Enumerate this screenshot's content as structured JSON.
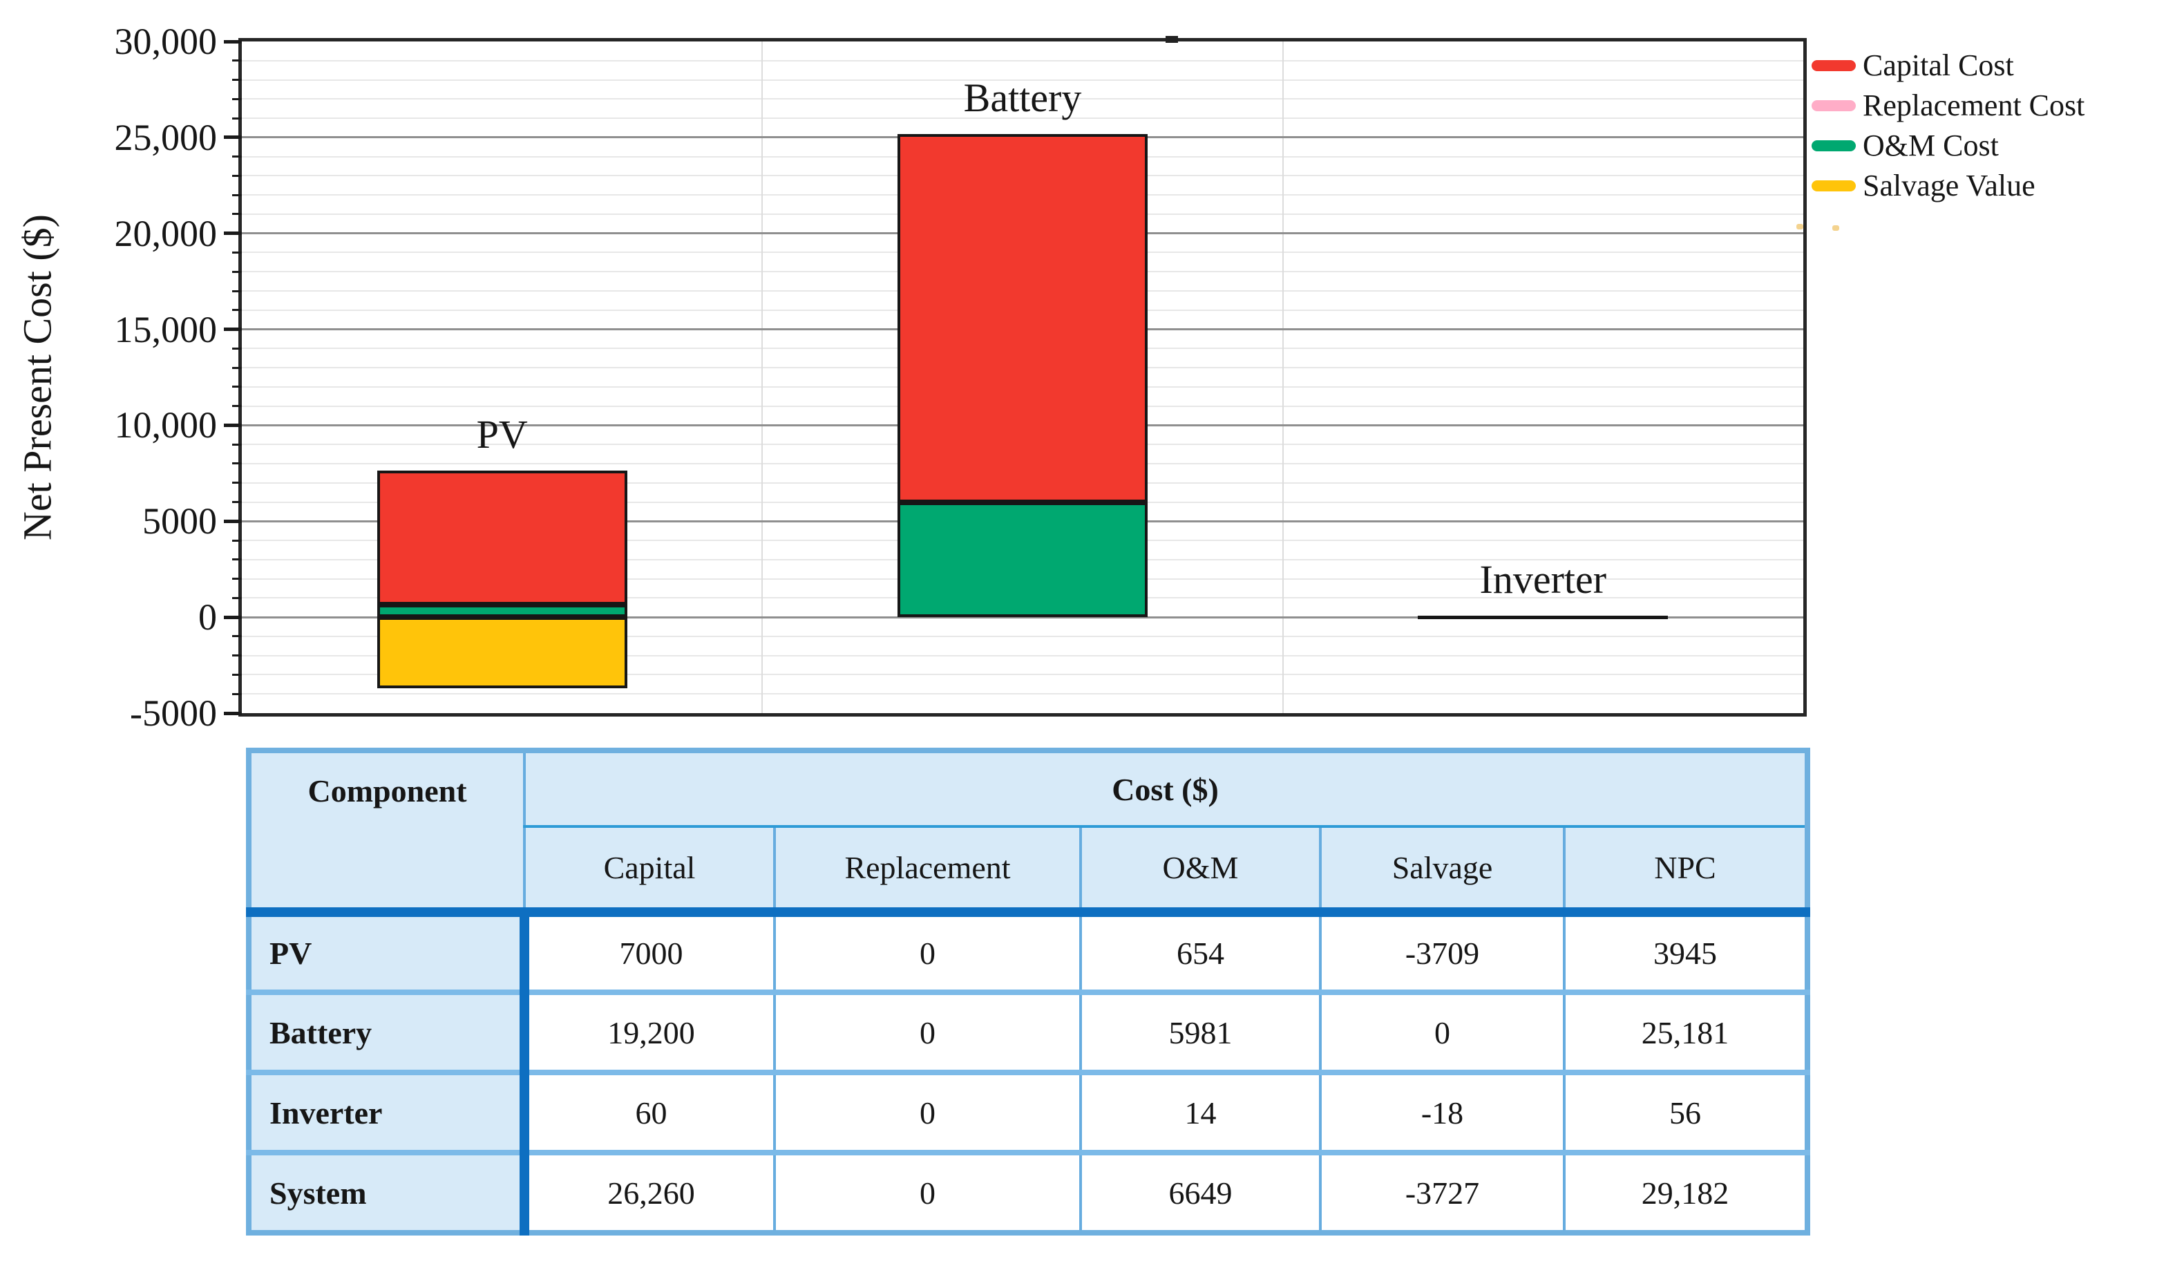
{
  "chart": {
    "ylabel": "Net Present Cost ($)",
    "y_tick_labels": [
      "30,000",
      "25,000",
      "20,000",
      "15,000",
      "10,000",
      "5000",
      "0",
      "-5000"
    ],
    "legend": [
      {
        "label": "Capital Cost",
        "color": "#F2392E"
      },
      {
        "label": "Replacement Cost",
        "color": "#FFADC7"
      },
      {
        "label": "O&M Cost",
        "color": "#00A870"
      },
      {
        "label": "Salvage Value",
        "color": "#FFC40A"
      }
    ]
  },
  "chart_data": {
    "type": "bar",
    "stacked": true,
    "categories": [
      "PV",
      "Battery",
      "Inverter"
    ],
    "series": [
      {
        "name": "O&M Cost",
        "color": "#00A870",
        "values": [
          654,
          5981,
          14
        ]
      },
      {
        "name": "Capital Cost",
        "color": "#F2392E",
        "values": [
          7000,
          19200,
          60
        ]
      },
      {
        "name": "Replacement Cost",
        "color": "#FFADC7",
        "values": [
          0,
          0,
          0
        ]
      },
      {
        "name": "Salvage Value",
        "color": "#FFC40A",
        "values": [
          -3709,
          0,
          -18
        ]
      }
    ],
    "title": "",
    "xlabel": "",
    "ylabel": "Net Present Cost ($)",
    "ylim": [
      -5000,
      30000
    ],
    "y_major_step": 5000,
    "y_minor_step": 1000,
    "grid": true,
    "legend_position": "outside-top-right",
    "legend_order": [
      "Capital Cost",
      "Replacement Cost",
      "O&M Cost",
      "Salvage Value"
    ]
  },
  "table": {
    "header": {
      "component": "Component",
      "cost_group": "Cost ($)",
      "columns": [
        "Capital",
        "Replacement",
        "O&M",
        "Salvage",
        "NPC"
      ]
    },
    "rows": [
      {
        "component": "PV",
        "values": [
          "7000",
          "0",
          "654",
          "-3709",
          "3945"
        ]
      },
      {
        "component": "Battery",
        "values": [
          "19,200",
          "0",
          "5981",
          "0",
          "25,181"
        ]
      },
      {
        "component": "Inverter",
        "values": [
          "60",
          "0",
          "14",
          "-18",
          "56"
        ]
      },
      {
        "component": "System",
        "values": [
          "26,260",
          "0",
          "6649",
          "-3727",
          "29,182"
        ]
      }
    ]
  },
  "colors": {
    "capital": "#F2392E",
    "replacement": "#FFADC7",
    "om": "#00A870",
    "salvage": "#FFC40A",
    "grid_major": "#8f8f8f",
    "grid_minor": "#e7e7e7",
    "table_header_bg": "#D7EAF8",
    "table_outer_border": "#6FB0DF",
    "table_thick_rule": "#0E6FC1",
    "table_row_separator": "#7CBAE8",
    "table_thin_rule": "#66ACDF"
  }
}
